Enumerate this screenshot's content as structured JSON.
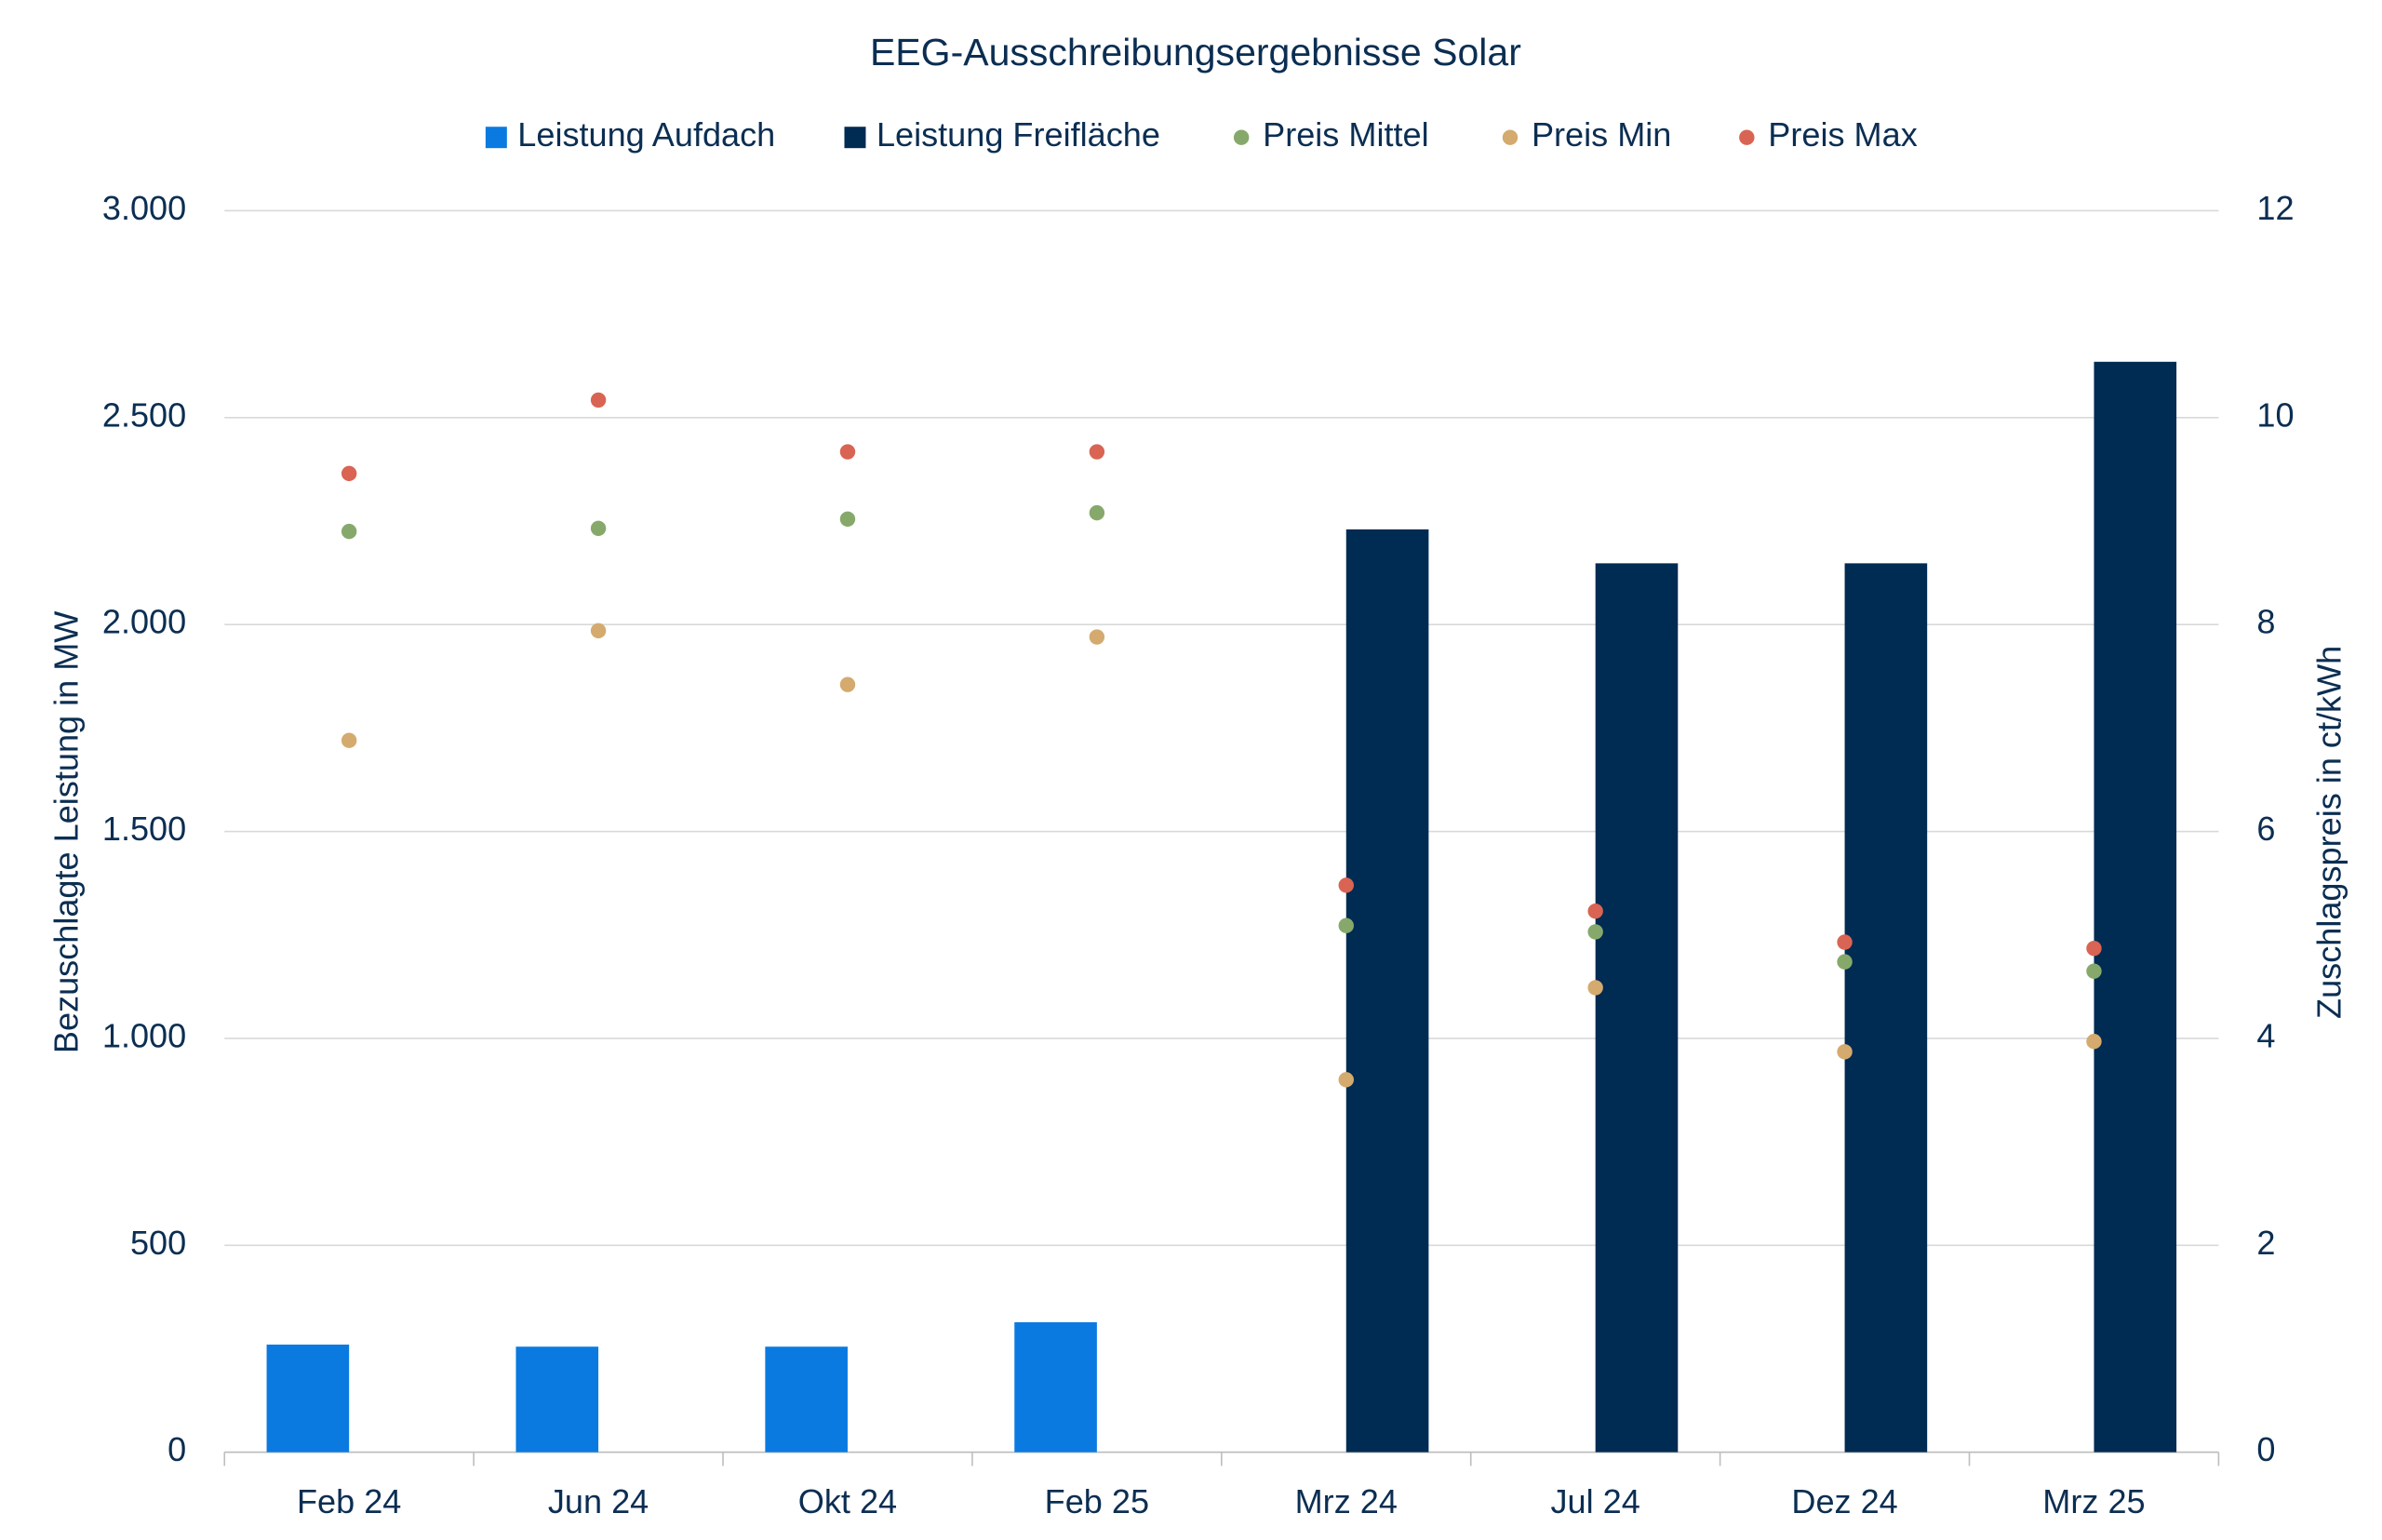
{
  "chart_data": {
    "type": "bar+scatter",
    "title": "EEG-Ausschreibungsergebnisse Solar",
    "y_label": "Bezuschlagte Leistung in MW",
    "y2_label": "Zuschlagspreis in ct/kWh",
    "categories": [
      "Feb 24",
      "Jun 24",
      "Okt 24",
      "Feb 25",
      "Mrz 24",
      "Jul 24",
      "Dez 24",
      "Mrz 25"
    ],
    "series": [
      {
        "name": "Leistung Aufdach",
        "type": "bar",
        "color": "#0a7ae0",
        "values": [
          260,
          255,
          255,
          314,
          null,
          null,
          null,
          null
        ]
      },
      {
        "name": "Leistung Freifläche",
        "type": "bar",
        "color": "#002b52",
        "values": [
          null,
          null,
          null,
          null,
          2230,
          2148,
          2148,
          2635
        ]
      },
      {
        "name": "Preis Mittel",
        "type": "scatter",
        "axis": "y2",
        "color": "#86a96b",
        "values": [
          8.9,
          8.93,
          9.02,
          9.08,
          5.09,
          5.03,
          4.74,
          4.65
        ]
      },
      {
        "name": "Preis Min",
        "type": "scatter",
        "axis": "y2",
        "color": "#d4aa6e",
        "values": [
          6.88,
          7.94,
          7.42,
          7.88,
          3.6,
          4.49,
          3.87,
          3.97
        ]
      },
      {
        "name": "Preis Max",
        "type": "scatter",
        "axis": "y2",
        "color": "#d96453",
        "values": [
          9.46,
          10.17,
          9.67,
          9.67,
          5.48,
          5.23,
          4.93,
          4.87
        ]
      }
    ],
    "ylim": [
      0,
      3000
    ],
    "yticks": [
      0,
      500,
      {
        "value": 1000,
        "label": "1.000"
      },
      {
        "value": 1500,
        "label": "1.500"
      },
      {
        "value": 2000,
        "label": "2.000"
      },
      {
        "value": 2500,
        "label": "2.500"
      },
      {
        "value": 3000,
        "label": "3.000"
      }
    ],
    "y2lim": [
      0,
      12
    ],
    "y2ticks": [
      0,
      2,
      4,
      6,
      8,
      10,
      12
    ],
    "grid": true,
    "legend": "top"
  }
}
